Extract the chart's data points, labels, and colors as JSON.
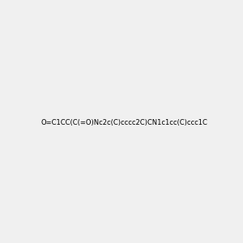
{
  "smiles": "O=C1CC(C(=O)Nc2c(C)cccc2C)CN1c1cc(C)ccc1C",
  "title": "",
  "bg_color": "#f0f0f0",
  "img_size": [
    300,
    300
  ]
}
